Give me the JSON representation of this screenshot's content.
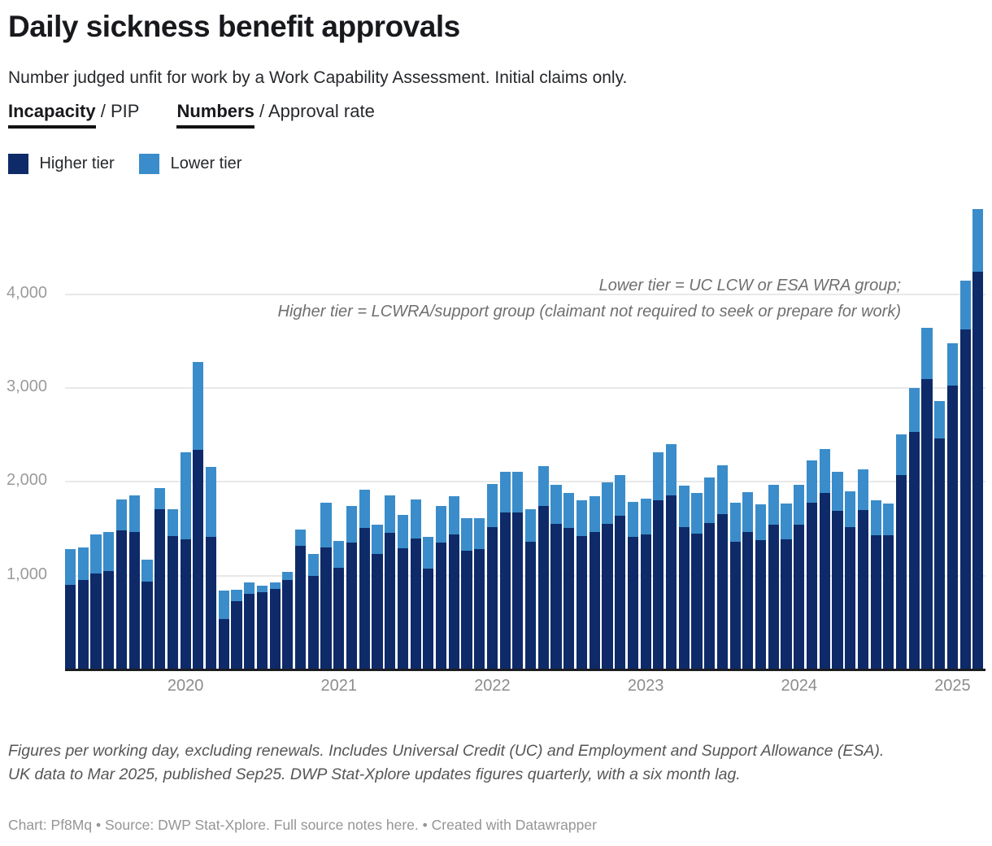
{
  "header": {
    "title": "Daily sickness benefit approvals",
    "subtitle": "Number judged unfit for work by a Work Capability Assessment. Initial claims only."
  },
  "tabs": {
    "separator": "/",
    "groups": [
      {
        "active_label": "Incapacity",
        "inactive_label": "PIP"
      },
      {
        "active_label": "Numbers",
        "inactive_label": "Approval rate"
      }
    ]
  },
  "legend": {
    "items": [
      {
        "label": "Higher tier",
        "color": "#0e2a68"
      },
      {
        "label": "Lower tier",
        "color": "#3a8dca"
      }
    ]
  },
  "annotation": {
    "line1": "Lower tier = UC LCW or ESA WRA group;",
    "line2": "Higher tier = LCWRA/support group (claimant not required to seek or prepare for work)"
  },
  "chart_data": {
    "type": "bar",
    "stacked": true,
    "title": "Daily sickness benefit approvals",
    "ylabel": "",
    "xlabel": "",
    "grid": true,
    "legend_position": "top-left",
    "ylim": [
      0,
      4950
    ],
    "yticks": [
      1000,
      2000,
      3000,
      4000
    ],
    "ytick_labels": [
      "1,000",
      "2,000",
      "3,000",
      "4,000"
    ],
    "xticks": [
      {
        "label": "2020",
        "index": 9
      },
      {
        "label": "2021",
        "index": 21
      },
      {
        "label": "2022",
        "index": 33
      },
      {
        "label": "2023",
        "index": 45
      },
      {
        "label": "2024",
        "index": 57
      },
      {
        "label": "2025",
        "index": 69
      }
    ],
    "x": [
      "Apr 2019",
      "May 2019",
      "Jun 2019",
      "Jul 2019",
      "Aug 2019",
      "Sep 2019",
      "Oct 2019",
      "Nov 2019",
      "Dec 2019",
      "Jan 2020",
      "Feb 2020",
      "Mar 2020",
      "Apr 2020",
      "May 2020",
      "Jun 2020",
      "Jul 2020",
      "Aug 2020",
      "Sep 2020",
      "Oct 2020",
      "Nov 2020",
      "Dec 2020",
      "Jan 2021",
      "Feb 2021",
      "Mar 2021",
      "Apr 2021",
      "May 2021",
      "Jun 2021",
      "Jul 2021",
      "Aug 2021",
      "Sep 2021",
      "Oct 2021",
      "Nov 2021",
      "Dec 2021",
      "Jan 2022",
      "Feb 2022",
      "Mar 2022",
      "Apr 2022",
      "May 2022",
      "Jun 2022",
      "Jul 2022",
      "Aug 2022",
      "Sep 2022",
      "Oct 2022",
      "Nov 2022",
      "Dec 2022",
      "Jan 2023",
      "Feb 2023",
      "Mar 2023",
      "Apr 2023",
      "May 2023",
      "Jun 2023",
      "Jul 2023",
      "Aug 2023",
      "Sep 2023",
      "Oct 2023",
      "Nov 2023",
      "Dec 2023",
      "Jan 2024",
      "Feb 2024",
      "Mar 2024",
      "Apr 2024",
      "May 2024",
      "Jun 2024",
      "Jul 2024",
      "Aug 2024",
      "Sep 2024",
      "Oct 2024",
      "Nov 2024",
      "Dec 2024",
      "Jan 2025",
      "Feb 2025",
      "Mar 2025"
    ],
    "series": [
      {
        "name": "Higher tier",
        "color": "#0e2a68",
        "values": [
          900,
          955,
          1025,
          1050,
          1480,
          1465,
          940,
          1710,
          1420,
          1390,
          2340,
          1410,
          535,
          725,
          805,
          820,
          860,
          950,
          1320,
          995,
          1305,
          1080,
          1350,
          1510,
          1230,
          1455,
          1290,
          1400,
          1075,
          1350,
          1440,
          1270,
          1285,
          1520,
          1675,
          1675,
          1365,
          1740,
          1555,
          1510,
          1420,
          1465,
          1555,
          1640,
          1415,
          1440,
          1800,
          1860,
          1520,
          1445,
          1565,
          1660,
          1360,
          1465,
          1380,
          1545,
          1385,
          1545,
          1775,
          1880,
          1690,
          1515,
          1700,
          1435,
          1430,
          2070,
          2535,
          3100,
          2465,
          3025,
          3625,
          4245
        ]
      },
      {
        "name": "Lower tier",
        "color": "#3a8dca",
        "values": [
          380,
          350,
          415,
          415,
          330,
          390,
          235,
          225,
          290,
          925,
          940,
          750,
          310,
          125,
          125,
          70,
          65,
          90,
          175,
          240,
          475,
          290,
          390,
          410,
          310,
          405,
          355,
          410,
          335,
          390,
          410,
          345,
          330,
          455,
          430,
          430,
          345,
          430,
          410,
          375,
          385,
          385,
          440,
          435,
          375,
          385,
          520,
          545,
          440,
          435,
          480,
          520,
          420,
          430,
          380,
          425,
          380,
          420,
          455,
          470,
          420,
          385,
          430,
          365,
          335,
          440,
          470,
          540,
          400,
          455,
          525,
          660
        ]
      }
    ]
  },
  "footer": {
    "notes": "Figures per working day, excluding renewals. Includes Universal Credit (UC) and Employment and Support Allowance (ESA). UK data to Mar 2025, published Sep25. DWP Stat-Xplore updates figures quarterly, with a six month lag.",
    "byline_prefix": "Chart: Pf8Mq • Source: DWP Stat-Xplore. Full source notes ",
    "byline_link": "here",
    "byline_suffix": ". • Created with Datawrapper"
  }
}
